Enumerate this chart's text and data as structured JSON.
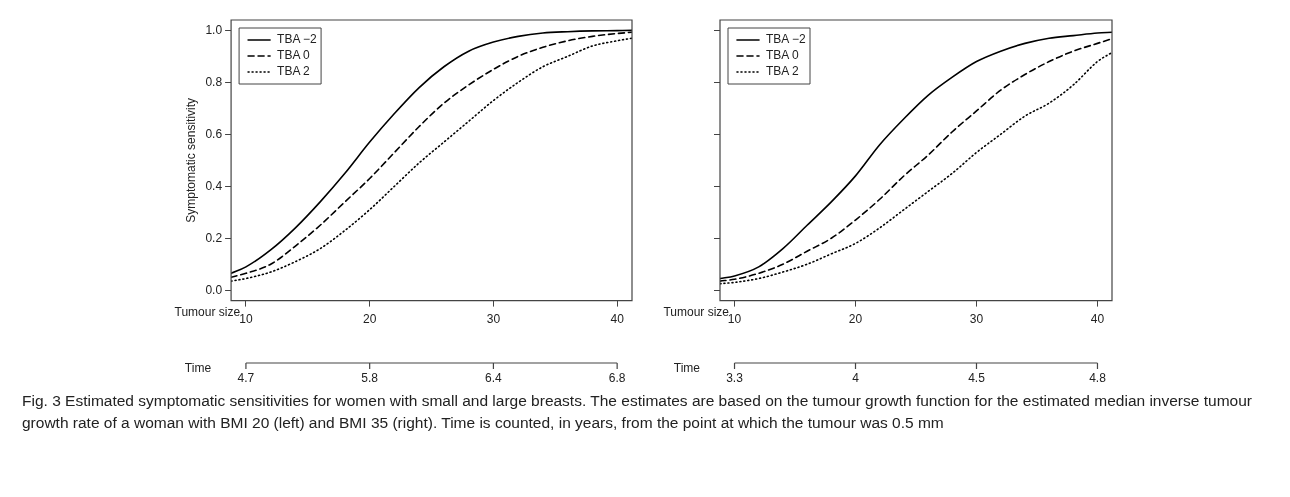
{
  "chart_data": [
    {
      "type": "line",
      "xlabel": "Tumour size",
      "ylabel": "Symptomatic sensitivity",
      "x2label": "Time",
      "xlim": [
        8.8,
        41.2
      ],
      "xticks": [
        10,
        20,
        30,
        40
      ],
      "ylim": [
        -0.04,
        1.04
      ],
      "yticks": [
        {
          "value": 0,
          "label": "0.0"
        },
        0.2,
        0.4,
        0.6,
        0.8,
        {
          "value": 1,
          "label": "1.0"
        }
      ],
      "grid": false,
      "legend": "top left",
      "marker": "none",
      "x": [
        8.8,
        10,
        12,
        14,
        16,
        18,
        20,
        22,
        24,
        26,
        28,
        30,
        32,
        34,
        36,
        38,
        40,
        41.2
      ],
      "series": [
        {
          "name": "TBA −2",
          "color": "#000000",
          "line_style": "solid",
          "values": [
            0.065,
            0.09,
            0.155,
            0.24,
            0.34,
            0.45,
            0.57,
            0.68,
            0.78,
            0.86,
            0.92,
            0.955,
            0.977,
            0.99,
            0.995,
            0.998,
            0.999,
            1.0
          ]
        },
        {
          "name": "TBA 0",
          "color": "#000000",
          "line_style": "dashed",
          "values": [
            0.05,
            0.065,
            0.1,
            0.17,
            0.25,
            0.34,
            0.43,
            0.53,
            0.63,
            0.72,
            0.79,
            0.85,
            0.9,
            0.935,
            0.96,
            0.977,
            0.988,
            0.993
          ]
        },
        {
          "name": "TBA 2",
          "color": "#000000",
          "line_style": "dotted",
          "values": [
            0.035,
            0.045,
            0.07,
            0.11,
            0.16,
            0.23,
            0.31,
            0.4,
            0.49,
            0.57,
            0.65,
            0.73,
            0.8,
            0.86,
            0.9,
            0.94,
            0.96,
            0.97
          ]
        }
      ],
      "annotations": [
        {
          "text": "4.7",
          "x": 10
        },
        {
          "text": "5.8",
          "x": 20
        },
        {
          "text": "6.4",
          "x": 30
        },
        {
          "text": "6.8",
          "x": 40
        },
        "Fig. 3 Estimated symptomatic sensitivities for women with small and large breasts. The estimates are based on the tumour growth function for the estimated median inverse tumour growth rate of a woman with BMI 20 (left) and BMI 35 (right). Time is counted, in years, from the point at which the tumour was 0.5 mm"
      ]
    },
    {
      "type": "line",
      "xlabel": "Tumour size",
      "x2label": "Time",
      "xlim": [
        8.8,
        41.2
      ],
      "xticks": [
        10,
        20,
        30,
        40
      ],
      "ylim": [
        -0.04,
        1.04
      ],
      "yticks": [
        0.0,
        0.2,
        0.4,
        0.6,
        0.8,
        1.0
      ],
      "annotations": [
        {
          "text": "3.3",
          "x": 10
        },
        {
          "text": "4",
          "x": 20
        },
        {
          "text": "4.5",
          "x": 30
        },
        {
          "text": "4.8",
          "x": 40
        }
      ],
      "grid": false,
      "legend": "top left",
      "marker": "none",
      "tick_labels": "x",
      "x": [
        8.8,
        10,
        12,
        14,
        16,
        18,
        20,
        22,
        24,
        26,
        28,
        30,
        32,
        34,
        36,
        38,
        40,
        41.2
      ],
      "series": [
        {
          "name": "TBA −2",
          "color": "#000000",
          "line_style": "solid",
          "values": [
            0.045,
            0.055,
            0.09,
            0.16,
            0.25,
            0.34,
            0.44,
            0.56,
            0.66,
            0.75,
            0.82,
            0.88,
            0.92,
            0.95,
            0.97,
            0.98,
            0.99,
            0.993
          ]
        },
        {
          "name": "TBA 0",
          "color": "#000000",
          "line_style": "dashed",
          "values": [
            0.035,
            0.042,
            0.065,
            0.1,
            0.15,
            0.2,
            0.27,
            0.35,
            0.44,
            0.52,
            0.61,
            0.69,
            0.77,
            0.83,
            0.88,
            0.92,
            0.95,
            0.968
          ]
        },
        {
          "name": "TBA 2",
          "color": "#000000",
          "line_style": "dotted",
          "values": [
            0.025,
            0.03,
            0.045,
            0.07,
            0.1,
            0.14,
            0.18,
            0.24,
            0.31,
            0.38,
            0.45,
            0.53,
            0.6,
            0.67,
            0.72,
            0.79,
            0.88,
            0.915
          ]
        }
      ]
    }
  ]
}
